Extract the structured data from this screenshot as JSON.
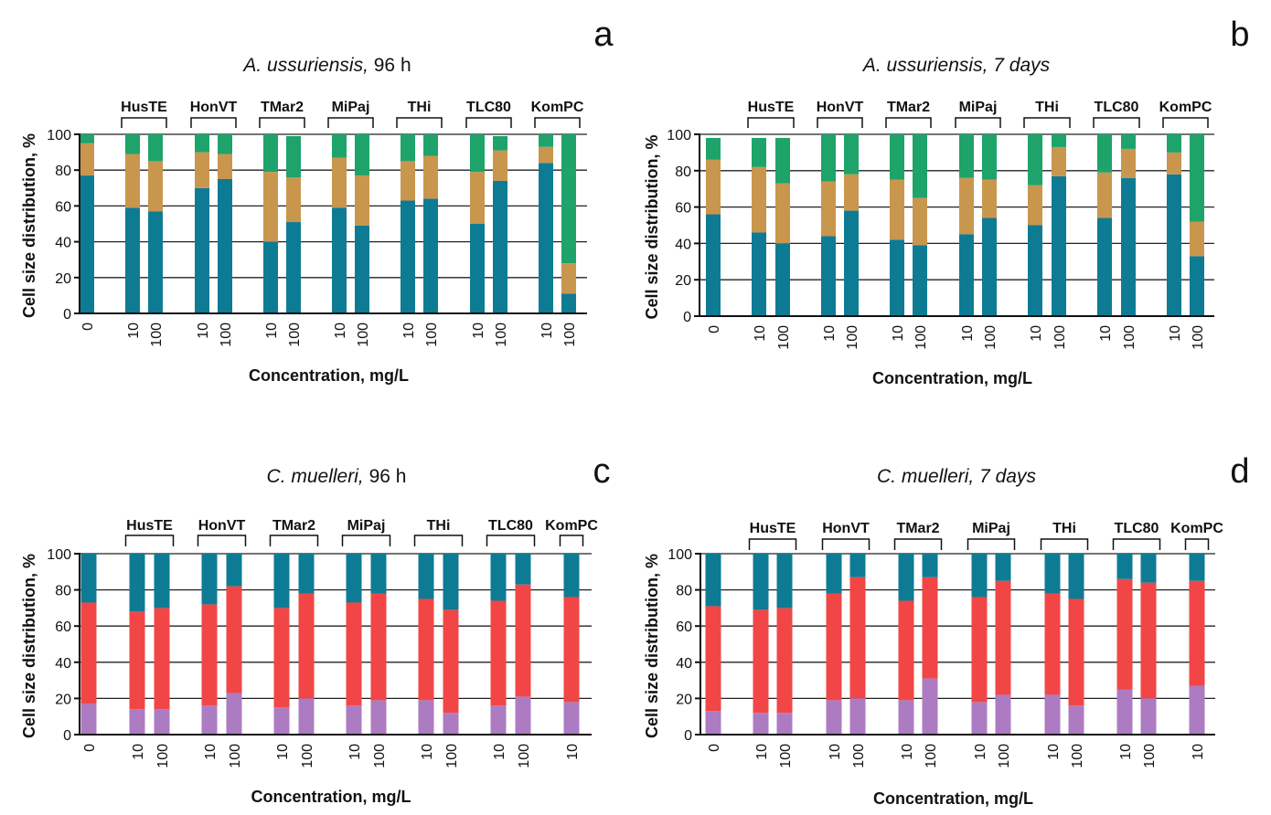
{
  "colors": {
    "teal": "#0e7b94",
    "tan": "#c9964e",
    "green": "#1ea36a",
    "purple": "#ad7bc2",
    "red": "#f24646"
  },
  "chart_data": [
    {
      "id": "a",
      "type": "stacked-bar",
      "title_italic": "A. ussuriensis,",
      "title_rest": " 96 h",
      "panel_letter": "a",
      "xlabel": "Concentration, mg/L",
      "ylabel": "Cell size distribution, %",
      "ylim": [
        0,
        100
      ],
      "yticks": [
        0,
        20,
        40,
        60,
        80,
        100
      ],
      "series_colors": [
        "teal",
        "tan",
        "green"
      ],
      "groups": [
        {
          "label": "",
          "bars": [
            {
              "x": "0",
              "values": [
                77,
                18,
                5
              ]
            }
          ]
        },
        {
          "label": "HusTE",
          "bars": [
            {
              "x": "10",
              "values": [
                59,
                30,
                11
              ]
            },
            {
              "x": "100",
              "values": [
                57,
                28,
                15
              ]
            }
          ]
        },
        {
          "label": "HonVT",
          "bars": [
            {
              "x": "10",
              "values": [
                70,
                20,
                10
              ]
            },
            {
              "x": "100",
              "values": [
                75,
                14,
                11
              ]
            }
          ]
        },
        {
          "label": "TMar2",
          "bars": [
            {
              "x": "10",
              "values": [
                40,
                39,
                21
              ]
            },
            {
              "x": "100",
              "values": [
                51,
                25,
                23
              ]
            }
          ]
        },
        {
          "label": "MiPaj",
          "bars": [
            {
              "x": "10",
              "values": [
                59,
                28,
                13
              ]
            },
            {
              "x": "100",
              "values": [
                49,
                28,
                23
              ]
            }
          ]
        },
        {
          "label": "THi",
          "bars": [
            {
              "x": "10",
              "values": [
                63,
                22,
                15
              ]
            },
            {
              "x": "100",
              "values": [
                64,
                24,
                12
              ]
            }
          ]
        },
        {
          "label": "TLC80",
          "bars": [
            {
              "x": "10",
              "values": [
                50,
                29,
                21
              ]
            },
            {
              "x": "100",
              "values": [
                74,
                17,
                8
              ]
            }
          ]
        },
        {
          "label": "KomPC",
          "bars": [
            {
              "x": "10",
              "values": [
                84,
                9,
                7
              ]
            },
            {
              "x": "100",
              "values": [
                11,
                17,
                72
              ]
            }
          ]
        }
      ]
    },
    {
      "id": "b",
      "type": "stacked-bar",
      "title_italic": "A. ussuriensis, 7 days",
      "title_rest": "",
      "panel_letter": "b",
      "xlabel": "Concentration, mg/L",
      "ylabel": "Cell size distribution, %",
      "ylim": [
        0,
        100
      ],
      "yticks": [
        0,
        20,
        40,
        60,
        80,
        100
      ],
      "series_colors": [
        "teal",
        "tan",
        "green"
      ],
      "groups": [
        {
          "label": "",
          "bars": [
            {
              "x": "0",
              "values": [
                56,
                30,
                12
              ]
            }
          ]
        },
        {
          "label": "HusTE",
          "bars": [
            {
              "x": "10",
              "values": [
                46,
                36,
                16
              ]
            },
            {
              "x": "100",
              "values": [
                40,
                33,
                25
              ]
            }
          ]
        },
        {
          "label": "HonVT",
          "bars": [
            {
              "x": "10",
              "values": [
                44,
                30,
                26
              ]
            },
            {
              "x": "100",
              "values": [
                58,
                20,
                22
              ]
            }
          ]
        },
        {
          "label": "TMar2",
          "bars": [
            {
              "x": "10",
              "values": [
                42,
                33,
                25
              ]
            },
            {
              "x": "100",
              "values": [
                39,
                26,
                35
              ]
            }
          ]
        },
        {
          "label": "MiPaj",
          "bars": [
            {
              "x": "10",
              "values": [
                45,
                31,
                24
              ]
            },
            {
              "x": "100",
              "values": [
                54,
                21,
                25
              ]
            }
          ]
        },
        {
          "label": "THi",
          "bars": [
            {
              "x": "10",
              "values": [
                50,
                22,
                28
              ]
            },
            {
              "x": "100",
              "values": [
                77,
                16,
                7
              ]
            }
          ]
        },
        {
          "label": "TLC80",
          "bars": [
            {
              "x": "10",
              "values": [
                54,
                25,
                21
              ]
            },
            {
              "x": "100",
              "values": [
                76,
                16,
                8
              ]
            }
          ]
        },
        {
          "label": "KomPC",
          "bars": [
            {
              "x": "10",
              "values": [
                78,
                12,
                10
              ]
            },
            {
              "x": "100",
              "values": [
                33,
                19,
                48
              ]
            }
          ]
        }
      ]
    },
    {
      "id": "c",
      "type": "stacked-bar",
      "title_italic": "C. muelleri,",
      "title_rest": " 96 h",
      "panel_letter": "c",
      "xlabel": "Concentration, mg/L",
      "ylabel": "Cell size distribution, %",
      "ylim": [
        0,
        100
      ],
      "yticks": [
        0,
        20,
        40,
        60,
        80,
        100
      ],
      "series_colors": [
        "purple",
        "red",
        "teal"
      ],
      "groups": [
        {
          "label": "",
          "bars": [
            {
              "x": "0",
              "values": [
                17,
                56,
                27
              ]
            }
          ]
        },
        {
          "label": "HusTE",
          "bars": [
            {
              "x": "10",
              "values": [
                14,
                54,
                32
              ]
            },
            {
              "x": "100",
              "values": [
                14,
                56,
                30
              ]
            }
          ]
        },
        {
          "label": "HonVT",
          "bars": [
            {
              "x": "10",
              "values": [
                16,
                56,
                28
              ]
            },
            {
              "x": "100",
              "values": [
                23,
                59,
                18
              ]
            }
          ]
        },
        {
          "label": "TMar2",
          "bars": [
            {
              "x": "10",
              "values": [
                15,
                55,
                30
              ]
            },
            {
              "x": "100",
              "values": [
                20,
                58,
                22
              ]
            }
          ]
        },
        {
          "label": "MiPaj",
          "bars": [
            {
              "x": "10",
              "values": [
                16,
                57,
                27
              ]
            },
            {
              "x": "100",
              "values": [
                19,
                59,
                22
              ]
            }
          ]
        },
        {
          "label": "THi",
          "bars": [
            {
              "x": "10",
              "values": [
                19,
                56,
                25
              ]
            },
            {
              "x": "100",
              "values": [
                12,
                57,
                31
              ]
            }
          ]
        },
        {
          "label": "TLC80",
          "bars": [
            {
              "x": "10",
              "values": [
                16,
                58,
                26
              ]
            },
            {
              "x": "100",
              "values": [
                21,
                62,
                17
              ]
            }
          ]
        },
        {
          "label": "KomPC",
          "bars": [
            {
              "x": "10",
              "values": [
                18,
                58,
                24
              ]
            }
          ]
        }
      ]
    },
    {
      "id": "d",
      "type": "stacked-bar",
      "title_italic": "C. muelleri, 7 days",
      "title_rest": "",
      "panel_letter": "d",
      "xlabel": "Concentration, mg/L",
      "ylabel": "Cell size distribution, %",
      "ylim": [
        0,
        100
      ],
      "yticks": [
        0,
        20,
        40,
        60,
        80,
        100
      ],
      "series_colors": [
        "purple",
        "red",
        "teal"
      ],
      "groups": [
        {
          "label": "",
          "bars": [
            {
              "x": "0",
              "values": [
                13,
                58,
                29
              ]
            }
          ]
        },
        {
          "label": "HusTE",
          "bars": [
            {
              "x": "10",
              "values": [
                12,
                57,
                31
              ]
            },
            {
              "x": "100",
              "values": [
                12,
                58,
                30
              ]
            }
          ]
        },
        {
          "label": "HonVT",
          "bars": [
            {
              "x": "10",
              "values": [
                19,
                59,
                22
              ]
            },
            {
              "x": "100",
              "values": [
                20,
                67,
                13
              ]
            }
          ]
        },
        {
          "label": "TMar2",
          "bars": [
            {
              "x": "10",
              "values": [
                19,
                55,
                26
              ]
            },
            {
              "x": "100",
              "values": [
                31,
                56,
                13
              ]
            }
          ]
        },
        {
          "label": "MiPaj",
          "bars": [
            {
              "x": "10",
              "values": [
                18,
                58,
                24
              ]
            },
            {
              "x": "100",
              "values": [
                22,
                63,
                15
              ]
            }
          ]
        },
        {
          "label": "THi",
          "bars": [
            {
              "x": "10",
              "values": [
                22,
                56,
                22
              ]
            },
            {
              "x": "100",
              "values": [
                16,
                59,
                25
              ]
            }
          ]
        },
        {
          "label": "TLC80",
          "bars": [
            {
              "x": "10",
              "values": [
                25,
                61,
                14
              ]
            },
            {
              "x": "100",
              "values": [
                20,
                64,
                16
              ]
            }
          ]
        },
        {
          "label": "KomPC",
          "bars": [
            {
              "x": "10",
              "values": [
                27,
                58,
                15
              ]
            }
          ]
        }
      ]
    }
  ]
}
